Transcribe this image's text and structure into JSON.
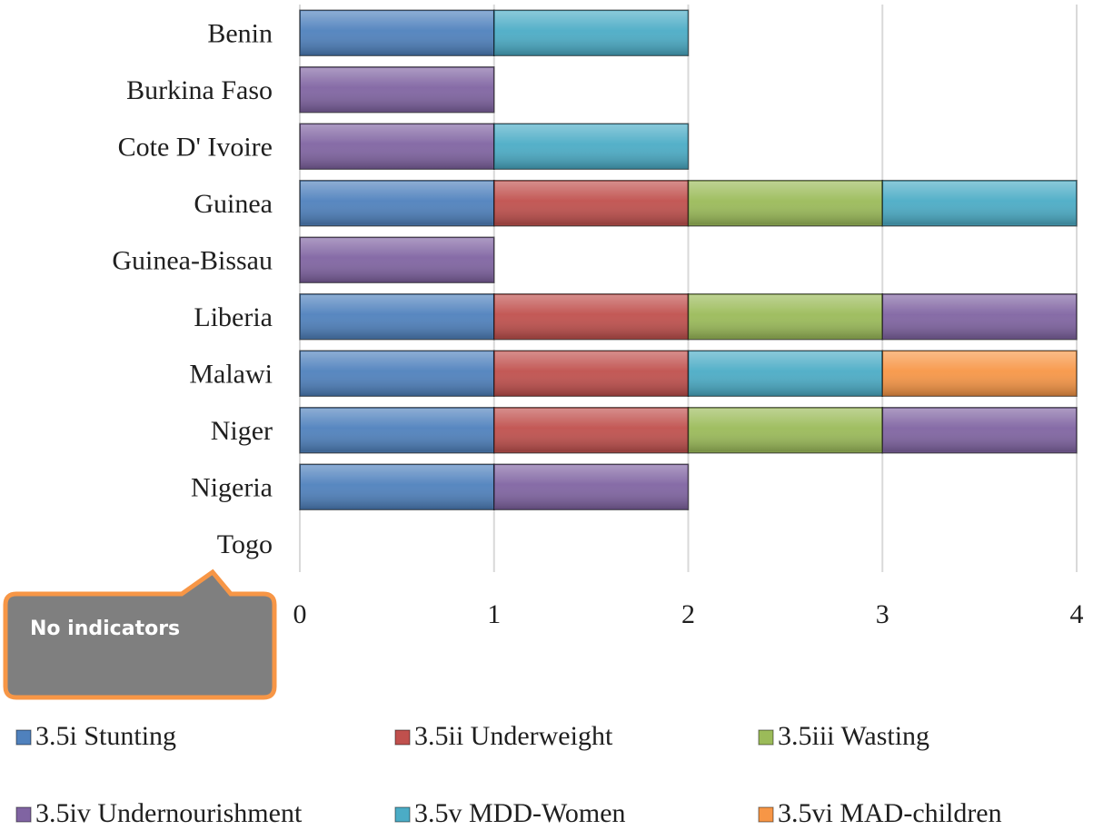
{
  "chart_data": {
    "type": "bar",
    "orientation": "horizontal",
    "stacked": true,
    "categories": [
      "Benin",
      "Burkina Faso",
      "Cote D' Ivoire",
      "Guinea",
      "Guinea-Bissau",
      "Liberia",
      "Malawi",
      "Niger",
      "Nigeria",
      "Togo"
    ],
    "series": [
      {
        "name": "3.5i Stunting",
        "color": "#4F81BD",
        "values": [
          1,
          0,
          0,
          1,
          0,
          1,
          1,
          1,
          1,
          0
        ]
      },
      {
        "name": "3.5ii Underweight",
        "color": "#C0504D",
        "values": [
          0,
          0,
          0,
          1,
          0,
          1,
          1,
          1,
          0,
          0
        ]
      },
      {
        "name": "3.5iii Wasting",
        "color": "#9BBB59",
        "values": [
          0,
          0,
          0,
          1,
          0,
          1,
          0,
          1,
          0,
          0
        ]
      },
      {
        "name": "3.5iv Undernourishment",
        "color": "#8064A2",
        "values": [
          0,
          1,
          1,
          0,
          1,
          1,
          0,
          1,
          1,
          0
        ]
      },
      {
        "name": "3.5v MDD-Women",
        "color": "#4BACC6",
        "values": [
          1,
          0,
          1,
          1,
          0,
          0,
          1,
          0,
          0,
          0
        ]
      },
      {
        "name": "3.5vi MAD-children",
        "color": "#F79646",
        "values": [
          0,
          0,
          0,
          0,
          0,
          0,
          1,
          0,
          0,
          0
        ]
      }
    ],
    "xlim": [
      0,
      4
    ],
    "xticks": [
      "0",
      "1",
      "2",
      "3",
      "4"
    ],
    "grid": true,
    "legend_position": "bottom",
    "annotation": {
      "text": "No indicators",
      "target": "Togo",
      "fill": "#7F7F7F",
      "border": "#F79646"
    }
  }
}
